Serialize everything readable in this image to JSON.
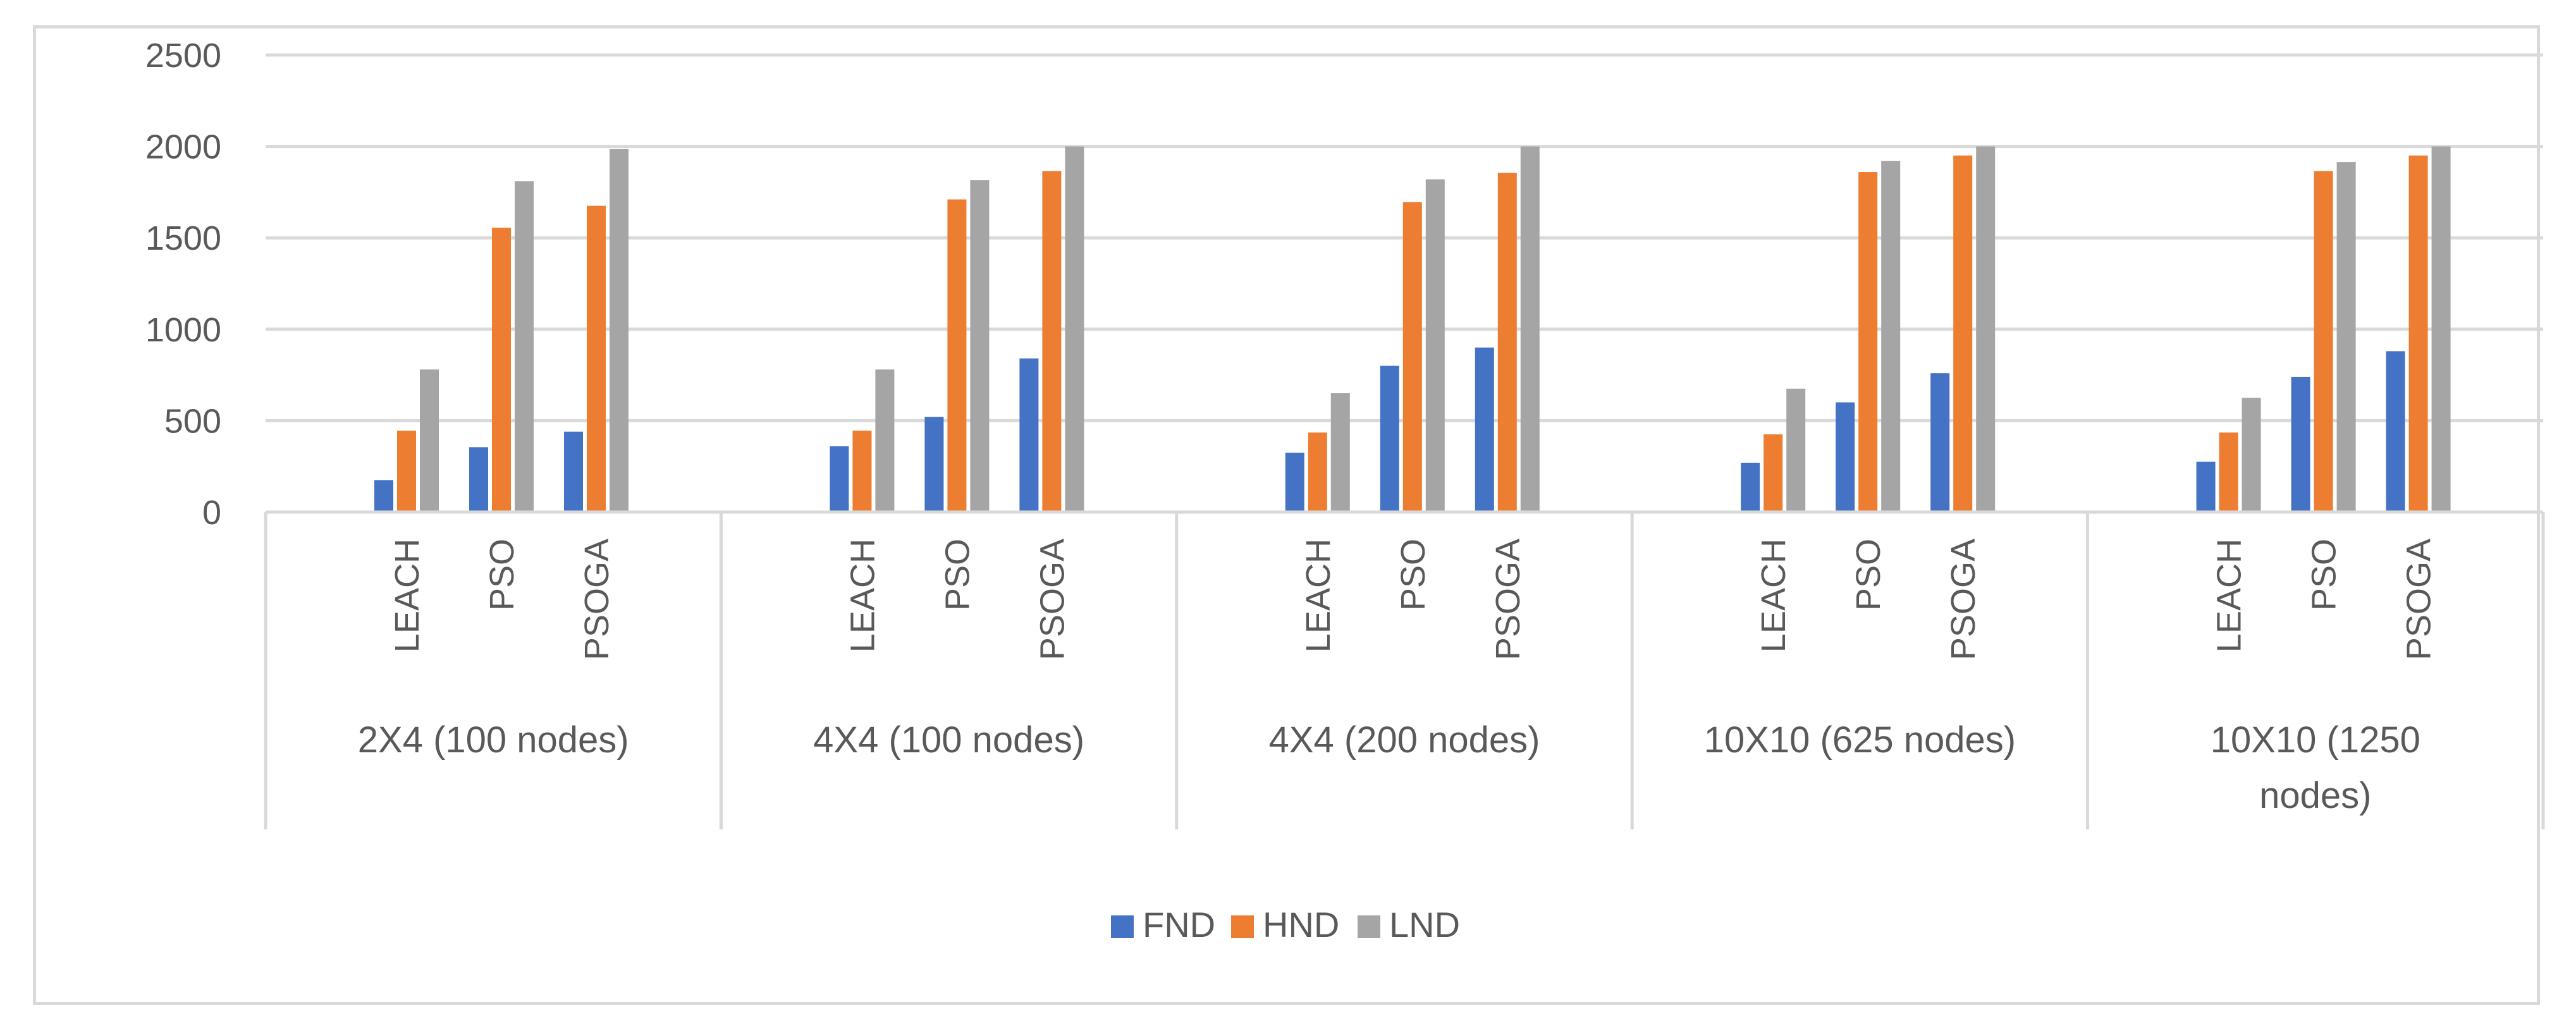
{
  "chart_data": {
    "type": "bar",
    "groups": [
      {
        "label_lines": [
          "2X4 (100 nodes)"
        ],
        "categories": [
          "LEACH",
          "PSO",
          "PSOGA"
        ]
      },
      {
        "label_lines": [
          "4X4 (100 nodes)"
        ],
        "categories": [
          "LEACH",
          "PSO",
          "PSOGA"
        ]
      },
      {
        "label_lines": [
          "4X4 (200 nodes)"
        ],
        "categories": [
          "LEACH",
          "PSO",
          "PSOGA"
        ]
      },
      {
        "label_lines": [
          "10X10 (625 nodes)"
        ],
        "categories": [
          "LEACH",
          "PSO",
          "PSOGA"
        ]
      },
      {
        "label_lines": [
          "10X10 (1250",
          "nodes)"
        ],
        "categories": [
          "LEACH",
          "PSO",
          "PSOGA"
        ]
      }
    ],
    "series": [
      {
        "name": "FND",
        "color": "#4472c4",
        "values": [
          175,
          355,
          440,
          360,
          520,
          840,
          325,
          800,
          900,
          270,
          600,
          760,
          275,
          740,
          880
        ]
      },
      {
        "name": "HND",
        "color": "#ed7d31",
        "values": [
          445,
          1555,
          1675,
          445,
          1710,
          1865,
          435,
          1695,
          1855,
          425,
          1860,
          1950,
          435,
          1865,
          1950
        ]
      },
      {
        "name": "LND",
        "color": "#a5a5a5",
        "values": [
          780,
          1810,
          1985,
          780,
          1815,
          2000,
          650,
          1820,
          2000,
          675,
          1920,
          2000,
          625,
          1915,
          2000
        ]
      }
    ],
    "yticks": [
      0,
      500,
      1000,
      1500,
      2000,
      2500
    ],
    "ylim": [
      0,
      2500
    ],
    "grid": true,
    "legend_position": "bottom"
  }
}
